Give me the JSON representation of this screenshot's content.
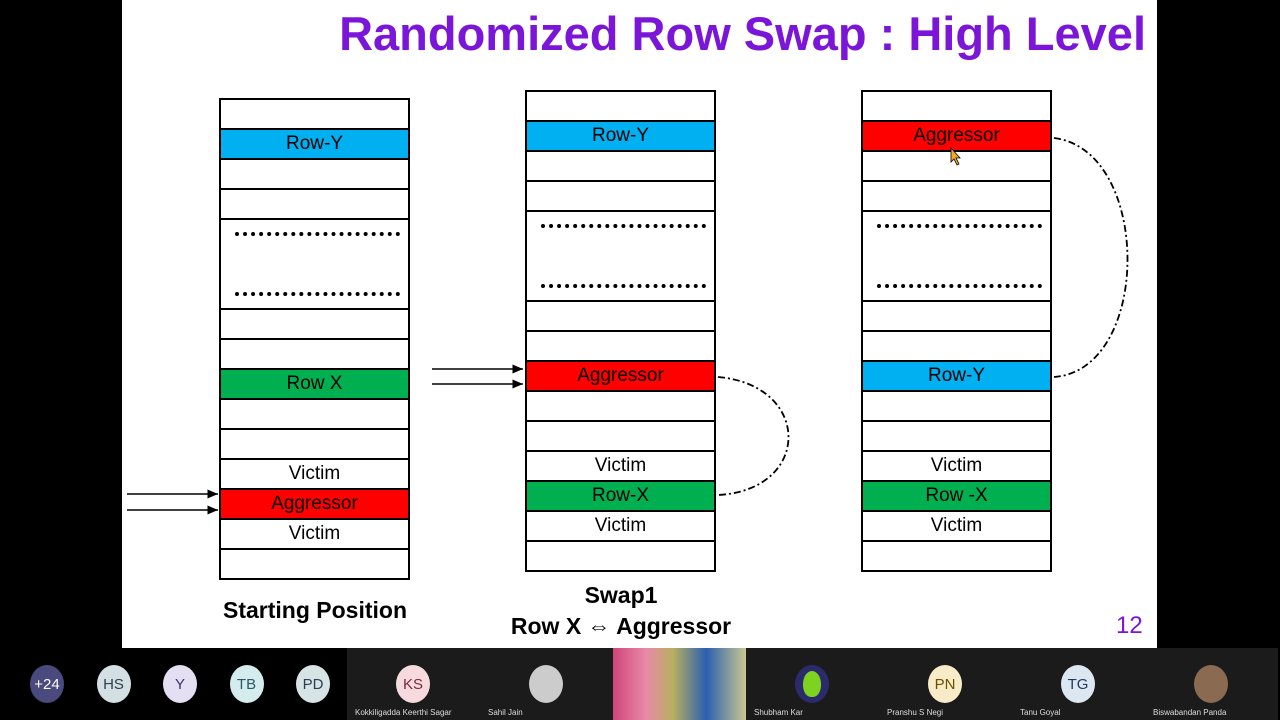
{
  "slide": {
    "title": "Randomized Row Swap : High Level",
    "title_color": "#7b16d9",
    "page_number": "12",
    "colors": {
      "blue": "#00b0f0",
      "green": "#00b050",
      "red": "#ff0000"
    },
    "columns": [
      {
        "caption": [
          "Starting Position"
        ],
        "rows": [
          {
            "label": ""
          },
          {
            "label": "Row-Y",
            "color": "blue"
          },
          {
            "label": ""
          },
          {
            "label": ""
          },
          {
            "label": "",
            "dots": true
          },
          {
            "label": ""
          },
          {
            "label": ""
          },
          {
            "label": "Row X",
            "color": "green"
          },
          {
            "label": ""
          },
          {
            "label": ""
          },
          {
            "label": "Victim"
          },
          {
            "label": "Aggressor",
            "color": "red"
          },
          {
            "label": "Victim"
          },
          {
            "label": ""
          }
        ]
      },
      {
        "caption": [
          "Swap1",
          "Row X ⇔ Aggressor"
        ],
        "rows": [
          {
            "label": ""
          },
          {
            "label": "Row-Y",
            "color": "blue"
          },
          {
            "label": ""
          },
          {
            "label": ""
          },
          {
            "label": "",
            "dots": true
          },
          {
            "label": ""
          },
          {
            "label": ""
          },
          {
            "label": "Aggressor",
            "color": "red"
          },
          {
            "label": ""
          },
          {
            "label": ""
          },
          {
            "label": "Victim"
          },
          {
            "label": "Row-X",
            "color": "green"
          },
          {
            "label": "Victim"
          },
          {
            "label": ""
          }
        ]
      },
      {
        "caption": [],
        "rows": [
          {
            "label": ""
          },
          {
            "label": "Aggressor",
            "color": "red"
          },
          {
            "label": ""
          },
          {
            "label": ""
          },
          {
            "label": "",
            "dots": true
          },
          {
            "label": ""
          },
          {
            "label": ""
          },
          {
            "label": "Row-Y",
            "color": "blue"
          },
          {
            "label": ""
          },
          {
            "label": ""
          },
          {
            "label": "Victim"
          },
          {
            "label": "Row -X",
            "color": "green"
          },
          {
            "label": "Victim"
          },
          {
            "label": ""
          }
        ]
      }
    ]
  },
  "participants": [
    {
      "initials": "+24",
      "bg": "#4b4a7e",
      "fg": "#ffffff"
    },
    {
      "initials": "HS",
      "bg": "#d3dfe2",
      "fg": "#2c3e50"
    },
    {
      "initials": "Y",
      "bg": "#e4dff2",
      "fg": "#3b3470"
    },
    {
      "initials": "TB",
      "bg": "#d4ecee",
      "fg": "#2b5a64"
    },
    {
      "initials": "PD",
      "bg": "#d6e4e6",
      "fg": "#2c3e50"
    }
  ],
  "tiles": [
    {
      "name": "Kokkiligadda Keerthi Sagar",
      "initials": "KS",
      "bg": "#f6dadd",
      "fg": "#7a2a3a"
    },
    {
      "name": "Sahil Jain",
      "initials": "",
      "bg": "#cccccc",
      "fg": "#000"
    },
    {
      "name": "",
      "initials": "",
      "video": true
    },
    {
      "name": "Shubham Kar",
      "initials": "",
      "bg": "#2b2b6b",
      "alien": true
    },
    {
      "name": "Pranshu S Negi",
      "initials": "PN",
      "bg": "#f8ecc8",
      "fg": "#6b5000"
    },
    {
      "name": "Tanu Goyal",
      "initials": "TG",
      "bg": "#dce7f2",
      "fg": "#1f3a5a"
    },
    {
      "name": "Biswabandan Panda",
      "initials": "",
      "bg": "#8a6a50",
      "fg": "#000"
    }
  ]
}
